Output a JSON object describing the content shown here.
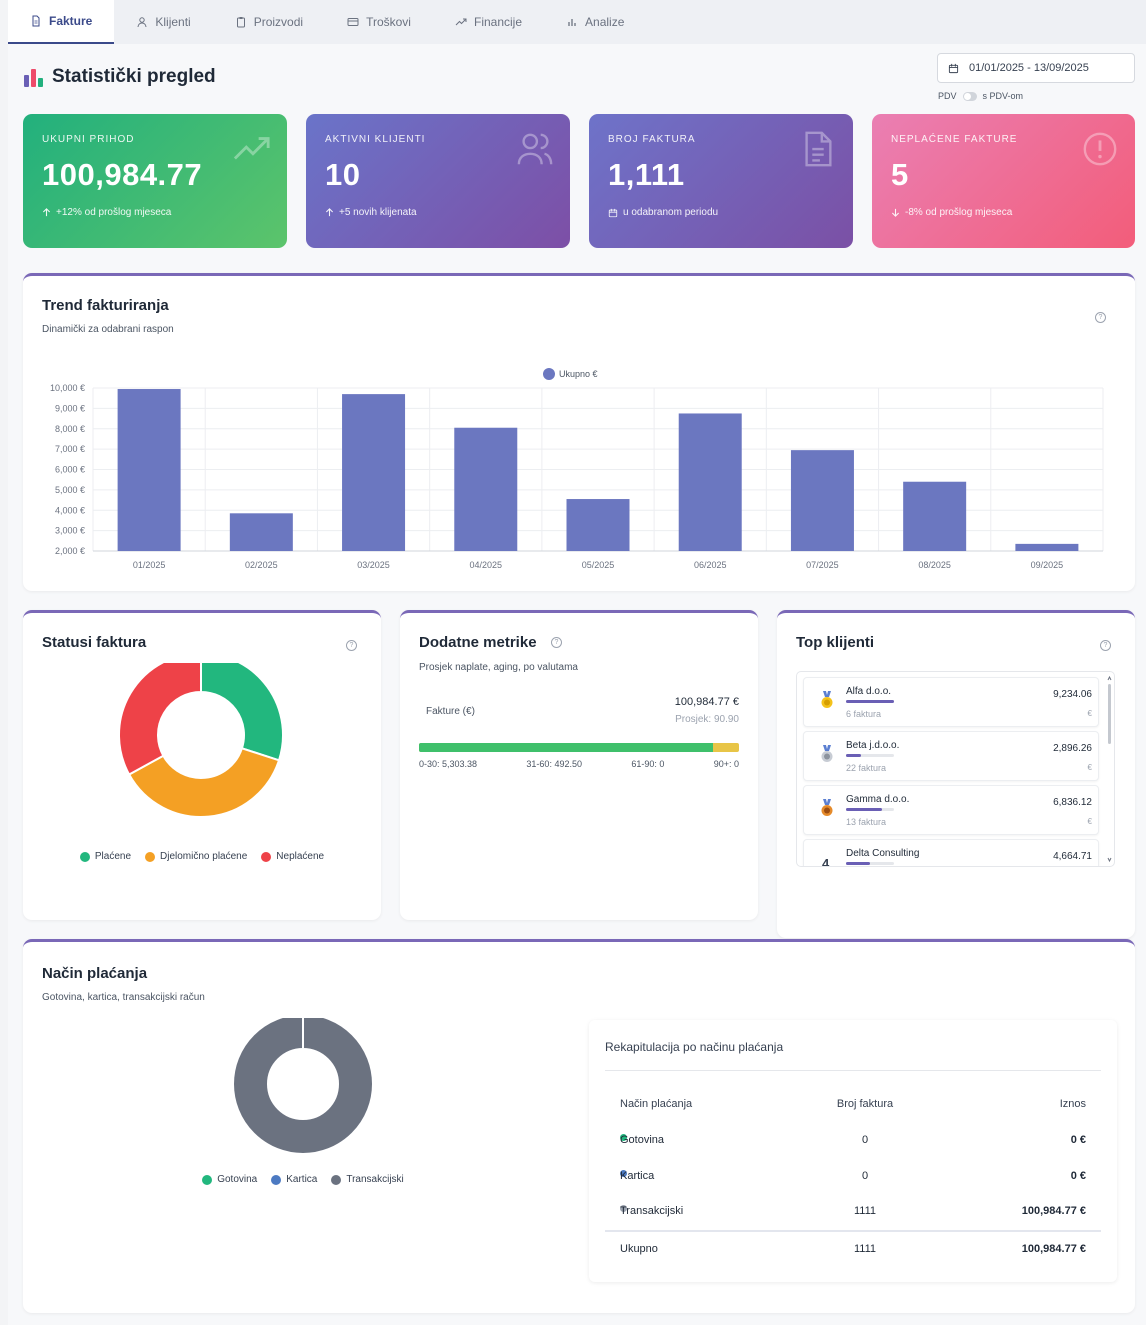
{
  "tabs": [
    {
      "label": "Fakture",
      "icon": "document-icon",
      "active": true
    },
    {
      "label": "Klijenti",
      "icon": "user-icon",
      "active": false
    },
    {
      "label": "Proizvodi",
      "icon": "clipboard-icon",
      "active": false
    },
    {
      "label": "Troškovi",
      "icon": "card-icon",
      "active": false
    },
    {
      "label": "Financije",
      "icon": "trend-icon",
      "active": false
    },
    {
      "label": "Analize",
      "icon": "bar-chart-icon",
      "active": false
    }
  ],
  "page": {
    "title": "Statistički pregled",
    "date_range": "01/01/2025 - 13/09/2025",
    "vat_left": "PDV",
    "vat_right": "s PDV-om"
  },
  "kpis": [
    {
      "label": "UKUPNI PRIHOD",
      "value": "100,984.77",
      "sub": "+12% od prošlog mjeseca",
      "icon": "trending-up-icon",
      "sub_icon": "arrow-up-icon"
    },
    {
      "label": "AKTIVNI KLIJENTI",
      "value": "10",
      "sub": "+5 novih klijenata",
      "icon": "users-icon",
      "sub_icon": "arrow-up-icon"
    },
    {
      "label": "BROJ FAKTURA",
      "value": "1,111",
      "sub": "u odabranom periodu",
      "icon": "file-icon",
      "sub_icon": "calendar-icon"
    },
    {
      "label": "NEPLAĆENE FAKTURE",
      "value": "5",
      "sub": "-8% od prošlog mjeseca",
      "icon": "alert-icon",
      "sub_icon": "arrow-down-icon"
    }
  ],
  "trend": {
    "title": "Trend fakturiranja",
    "desc": "Dinamički za odabrani raspon"
  },
  "chart_data": [
    {
      "type": "bar",
      "categories": [
        "01/2025",
        "02/2025",
        "03/2025",
        "04/2025",
        "05/2025",
        "06/2025",
        "07/2025",
        "08/2025",
        "09/2025"
      ],
      "series": [
        {
          "name": "Ukupno €",
          "values": [
            9950,
            3850,
            9700,
            8050,
            4550,
            8750,
            6950,
            5400,
            2350
          ],
          "color": "#6b77c0"
        }
      ],
      "ylim": [
        2000,
        10000
      ],
      "yticks": [
        "2,000 €",
        "3,000 €",
        "4,000 €",
        "5,000 €",
        "6,000 €",
        "7,000 €",
        "8,000 €",
        "9,000 €",
        "10,000 €"
      ],
      "legend": "top-center",
      "grid": true
    },
    {
      "type": "pie",
      "categories": [
        "Plaćene",
        "Djelomično plaćene",
        "Neplaćene"
      ],
      "values": [
        30,
        37,
        33
      ],
      "colors": [
        "#22b77e",
        "#f4a024",
        "#ee4248"
      ],
      "legend": "bottom"
    },
    {
      "type": "pie",
      "categories": [
        "Gotovina",
        "Kartica",
        "Transakcijski"
      ],
      "values": [
        0,
        0,
        1111
      ],
      "colors": [
        "#22b77e",
        "#4c7ac2",
        "#6b7280"
      ],
      "legend": "bottom"
    }
  ],
  "statusi": {
    "title": "Statusi faktura",
    "legend": [
      {
        "label": "Plaćene",
        "color": "#22b77e"
      },
      {
        "label": "Djelomično plaćene",
        "color": "#f4a024"
      },
      {
        "label": "Neplaćene",
        "color": "#ee4248"
      }
    ]
  },
  "metrike": {
    "title": "Dodatne metrike",
    "desc": "Prosjek naplate, aging, po valutama",
    "label": "Fakture (€)",
    "total": "100,984.77 €",
    "avg": "Prosjek: 90.90",
    "aging_fraction_green": 0.92,
    "aging": [
      "0-30: 5,303.38",
      "31-60: 492.50",
      "61-90: 0",
      "90+: 0"
    ]
  },
  "top": {
    "title": "Top klijenti",
    "clients": [
      {
        "name": "Alfa d.o.o.",
        "count": "6 faktura",
        "amount": "9,234.06",
        "cur": "€",
        "share": 1.0,
        "medal": "gold-medal-icon"
      },
      {
        "name": "Beta j.d.o.o.",
        "count": "22 faktura",
        "amount": "2,896.26",
        "cur": "€",
        "share": 0.31,
        "medal": "silver-medal-icon"
      },
      {
        "name": "Gamma d.o.o.",
        "count": "13 faktura",
        "amount": "6,836.12",
        "cur": "€",
        "share": 0.74,
        "medal": "bronze-medal-icon"
      },
      {
        "name": "Delta Consulting",
        "count": "",
        "amount": "4,664.71",
        "cur": "",
        "share": 0.51,
        "rank": "4"
      }
    ]
  },
  "nacin": {
    "title": "Način plaćanja",
    "desc": "Gotovina, kartica, transakcijski račun",
    "legend": [
      {
        "label": "Gotovina",
        "color": "#22b77e"
      },
      {
        "label": "Kartica",
        "color": "#4c7ac2"
      },
      {
        "label": "Transakcijski",
        "color": "#6b7280"
      }
    ],
    "recap_title": "Rekapitulacija po načinu plaćanja",
    "headers": [
      "Način plaćanja",
      "Broj faktura",
      "Iznos"
    ],
    "rows": [
      {
        "method": "Gotovina",
        "count": "0",
        "amount": "0 €",
        "color": "#22b77e"
      },
      {
        "method": "Kartica",
        "count": "0",
        "amount": "0 €",
        "color": "#4c7ac2"
      },
      {
        "method": "Transakcijski",
        "count": "1111",
        "amount": "100,984.77 €",
        "color": "#9ca3af"
      }
    ],
    "total": {
      "label": "Ukupno",
      "count": "1111",
      "amount": "100,984.77 €"
    }
  }
}
